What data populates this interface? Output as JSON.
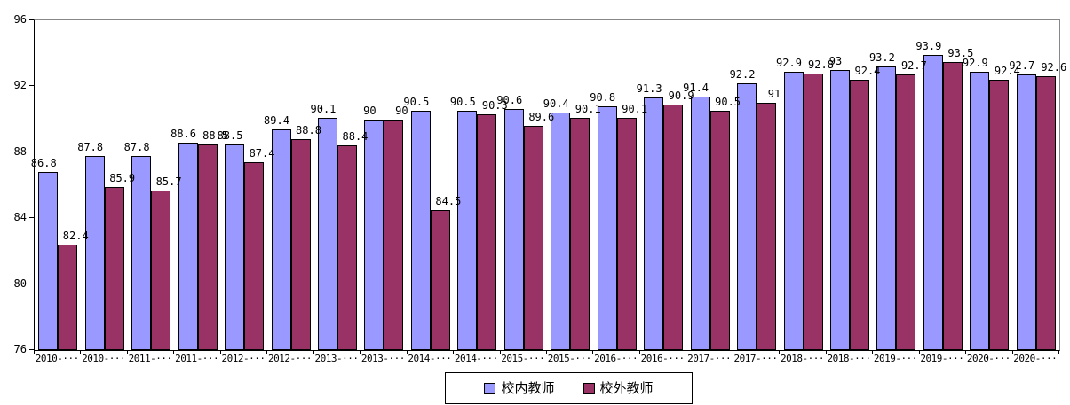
{
  "chart_data": {
    "type": "bar",
    "title": "",
    "xlabel": "",
    "ylabel": "",
    "categories": [
      "2010-···",
      "2010-···",
      "2011-···",
      "2011-···",
      "2012-···",
      "2012-···",
      "2013-···",
      "2013-···",
      "2014-···",
      "2014-···",
      "2015-···",
      "2015-···",
      "2016-···",
      "2016-···",
      "2017-···",
      "2017-···",
      "2018-···",
      "2018-···",
      "2019-···",
      "2019-···",
      "2020-···",
      "2020-···"
    ],
    "series": [
      {
        "name": "校内教师",
        "color": "#9999ff",
        "values": [
          86.8,
          87.8,
          87.8,
          88.6,
          88.5,
          89.4,
          90.1,
          90,
          90.5,
          90.5,
          90.6,
          90.4,
          90.8,
          91.3,
          91.4,
          92.2,
          92.9,
          93,
          93.2,
          93.9,
          92.9,
          92.7
        ]
      },
      {
        "name": "校外教师",
        "color": "#993366",
        "values": [
          82.4,
          85.9,
          85.7,
          88.5,
          87.4,
          88.8,
          88.4,
          90,
          84.5,
          90.3,
          89.6,
          90.1,
          90.1,
          90.9,
          90.5,
          91,
          92.8,
          92.4,
          92.7,
          93.5,
          92.4,
          92.6
        ]
      }
    ],
    "ylim": [
      76,
      96
    ],
    "yticks": [
      96,
      92,
      88,
      84,
      80,
      76
    ],
    "data_labels": true,
    "grid": "top-border-only",
    "legend_position": "bottom-center",
    "colors": {
      "bar_border": "#000000",
      "plot_outer_border": "#888888",
      "axis": "#000000",
      "background": "#ffffff"
    }
  }
}
